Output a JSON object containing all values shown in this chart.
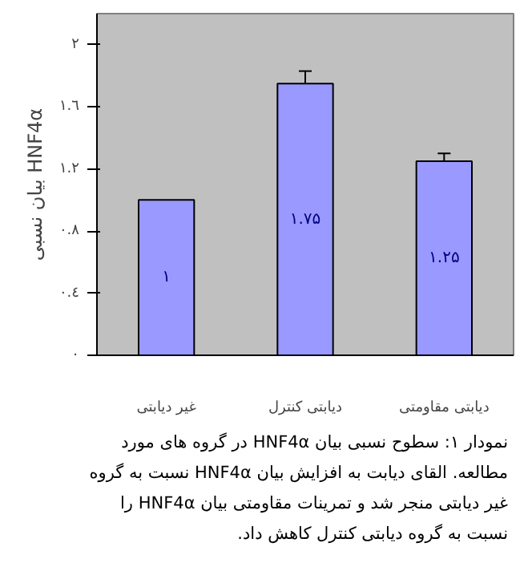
{
  "chart_data": {
    "type": "bar",
    "ylabel": "بیان نسبی HNF4α",
    "categories": [
      "غیر دیابتی",
      "دیابتی کنترل",
      "دیابتی مقاومتی"
    ],
    "values": [
      1,
      1.75,
      1.25
    ],
    "errors": [
      null,
      0.08,
      0.05
    ],
    "value_labels": [
      "۱",
      "۱.۷۵",
      "۱.۲۵"
    ],
    "color": "#9999ff",
    "ylim": [
      0,
      2.2
    ],
    "yticks": [
      {
        "value": 0,
        "label": "۰"
      },
      {
        "value": 0.4,
        "label": "۰.٤"
      },
      {
        "value": 0.8,
        "label": "۰.۸"
      },
      {
        "value": 1.2,
        "label": "۱.۲"
      },
      {
        "value": 1.6,
        "label": "۱.٦"
      },
      {
        "value": 2,
        "label": "۲"
      }
    ],
    "grid": false,
    "annotations": [
      "نمودار ۱: سطوح نسبی بیان HNF4α در گروه های مورد مطالعه. القای دیابت به افزایش بیان HNF4α نسبت به گروه غیر دیابتی منجر شد و تمرینات مقاومتی بیان HNF4α را نسبت به گروه دیابتی کنترل کاهش داد."
    ]
  }
}
